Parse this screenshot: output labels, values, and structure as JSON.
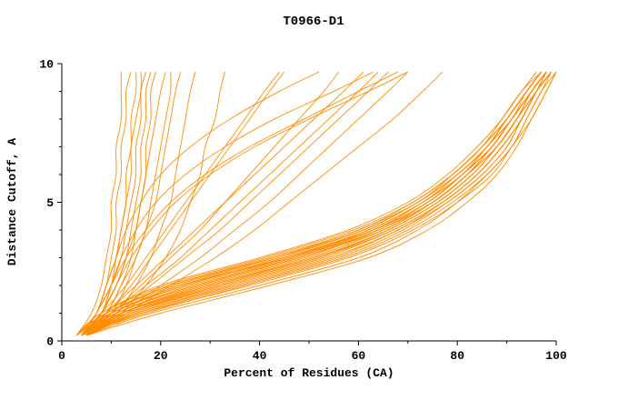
{
  "title": "T0966-D1",
  "colors": {
    "curve": "#ff8c00",
    "axis": "#000000",
    "background": "#ffffff"
  },
  "chart_data": {
    "type": "line",
    "title": "T0966-D1",
    "xlabel": "Percent of Residues (CA)",
    "ylabel": "Distance Cutoff, A",
    "xlim": [
      0,
      100
    ],
    "ylim": [
      0,
      10
    ],
    "x_ticks": [
      0,
      20,
      40,
      60,
      80,
      100
    ],
    "y_ticks": [
      0,
      5,
      10
    ],
    "x_minor_step": 10,
    "y_minor_step": 1,
    "grid": false,
    "legend": "none",
    "series_note": "Each series is the x (percent of residues, CA) value at each y_grid distance cutoff; one curve per predicted model",
    "y_grid": [
      0.2,
      1,
      2,
      3,
      4,
      5,
      6,
      7,
      8,
      9,
      9.7
    ],
    "series": [
      [
        4,
        10,
        25,
        45,
        62,
        73,
        80,
        86,
        90,
        94,
        97
      ],
      [
        4,
        12,
        28,
        48,
        64,
        74,
        81,
        87,
        91,
        95,
        98
      ],
      [
        5,
        14,
        32,
        52,
        66,
        76,
        83,
        88,
        92,
        95,
        98
      ],
      [
        3,
        9,
        22,
        42,
        60,
        71,
        79,
        85,
        90,
        94,
        97
      ],
      [
        4,
        11,
        27,
        47,
        63,
        73,
        81,
        86,
        91,
        94,
        97
      ],
      [
        5,
        15,
        34,
        54,
        68,
        77,
        84,
        89,
        93,
        96,
        99
      ],
      [
        4,
        13,
        30,
        50,
        65,
        75,
        82,
        88,
        92,
        96,
        99
      ],
      [
        3,
        8,
        20,
        40,
        58,
        70,
        78,
        84,
        89,
        93,
        96
      ],
      [
        4,
        10,
        24,
        44,
        61,
        72,
        80,
        86,
        90,
        94,
        97
      ],
      [
        5,
        16,
        36,
        56,
        69,
        78,
        85,
        90,
        93,
        96,
        98
      ],
      [
        4,
        12,
        29,
        49,
        64,
        75,
        82,
        87,
        91,
        95,
        98
      ],
      [
        4,
        14,
        33,
        53,
        67,
        77,
        84,
        89,
        93,
        96,
        99
      ],
      [
        3,
        9,
        23,
        43,
        60,
        72,
        79,
        85,
        90,
        94,
        97
      ],
      [
        4,
        11,
        26,
        46,
        62,
        73,
        81,
        86,
        91,
        95,
        98
      ],
      [
        5,
        13,
        31,
        51,
        66,
        76,
        83,
        88,
        92,
        96,
        99
      ],
      [
        4,
        10,
        25,
        45,
        63,
        74,
        81,
        87,
        91,
        95,
        98
      ],
      [
        3,
        8,
        21,
        41,
        59,
        71,
        79,
        85,
        89,
        93,
        97
      ],
      [
        4,
        15,
        35,
        55,
        68,
        78,
        85,
        90,
        93,
        96,
        99
      ],
      [
        5,
        12,
        28,
        48,
        65,
        75,
        82,
        88,
        92,
        95,
        98
      ],
      [
        4,
        9,
        22,
        43,
        61,
        72,
        80,
        86,
        90,
        94,
        97
      ],
      [
        4,
        13,
        32,
        52,
        67,
        77,
        84,
        89,
        93,
        96,
        98
      ],
      [
        3,
        10,
        24,
        46,
        63,
        74,
        81,
        87,
        91,
        95,
        98
      ],
      [
        5,
        11,
        27,
        47,
        64,
        75,
        82,
        87,
        91,
        95,
        98
      ],
      [
        4,
        12,
        30,
        51,
        66,
        76,
        83,
        88,
        92,
        96,
        99
      ],
      [
        5,
        18,
        40,
        60,
        72,
        80,
        86,
        91,
        94,
        97,
        100
      ],
      [
        4,
        16,
        38,
        58,
        71,
        80,
        87,
        91,
        95,
        98,
        100
      ],
      [
        5,
        20,
        42,
        62,
        74,
        82,
        88,
        92,
        95,
        98,
        100
      ],
      [
        4,
        17,
        37,
        57,
        70,
        79,
        86,
        91,
        94,
        97,
        99
      ],
      [
        4,
        7,
        9,
        10,
        11,
        11,
        12,
        12,
        13,
        13,
        14
      ],
      [
        4,
        8,
        10,
        11,
        12,
        13,
        13,
        14,
        14,
        15,
        15
      ],
      [
        3,
        6,
        8,
        9,
        10,
        10,
        11,
        11,
        12,
        12,
        12
      ],
      [
        5,
        9,
        12,
        14,
        15,
        16,
        17,
        17,
        18,
        18,
        19
      ],
      [
        4,
        8,
        11,
        13,
        14,
        15,
        16,
        16,
        17,
        17,
        18
      ],
      [
        4,
        7,
        10,
        12,
        13,
        14,
        15,
        15,
        16,
        16,
        17
      ],
      [
        5,
        10,
        13,
        15,
        17,
        18,
        19,
        20,
        21,
        22,
        22
      ],
      [
        4,
        9,
        12,
        15,
        17,
        19,
        20,
        21,
        22,
        23,
        24
      ],
      [
        3,
        7,
        9,
        11,
        12,
        13,
        14,
        14,
        15,
        16,
        16
      ],
      [
        5,
        11,
        15,
        18,
        20,
        22,
        23,
        24,
        25,
        26,
        27
      ],
      [
        4,
        8,
        11,
        13,
        15,
        16,
        17,
        18,
        19,
        20,
        21
      ],
      [
        5,
        12,
        17,
        21,
        24,
        26,
        28,
        29,
        31,
        32,
        33
      ],
      [
        4,
        9,
        14,
        18,
        22,
        26,
        30,
        34,
        38,
        42,
        45
      ],
      [
        4,
        10,
        16,
        22,
        28,
        33,
        38,
        43,
        48,
        53,
        56
      ],
      [
        5,
        12,
        20,
        28,
        35,
        42,
        48,
        54,
        60,
        66,
        70
      ],
      [
        4,
        8,
        13,
        17,
        21,
        25,
        29,
        33,
        37,
        41,
        44
      ],
      [
        5,
        11,
        18,
        25,
        32,
        38,
        44,
        50,
        56,
        62,
        66
      ],
      [
        4,
        10,
        17,
        24,
        30,
        36,
        42,
        48,
        54,
        60,
        64
      ],
      [
        5,
        13,
        22,
        31,
        39,
        46,
        53,
        60,
        67,
        73,
        77
      ],
      [
        4,
        9,
        15,
        21,
        27,
        33,
        39,
        45,
        51,
        57,
        61
      ],
      [
        4,
        7,
        9,
        11,
        13,
        16,
        20,
        26,
        34,
        44,
        52
      ],
      [
        4,
        8,
        10,
        12,
        15,
        19,
        25,
        33,
        43,
        55,
        63
      ],
      [
        5,
        8,
        11,
        14,
        18,
        23,
        30,
        39,
        50,
        62,
        70
      ],
      [
        4,
        7,
        10,
        13,
        17,
        22,
        29,
        38,
        49,
        60,
        68
      ]
    ]
  }
}
